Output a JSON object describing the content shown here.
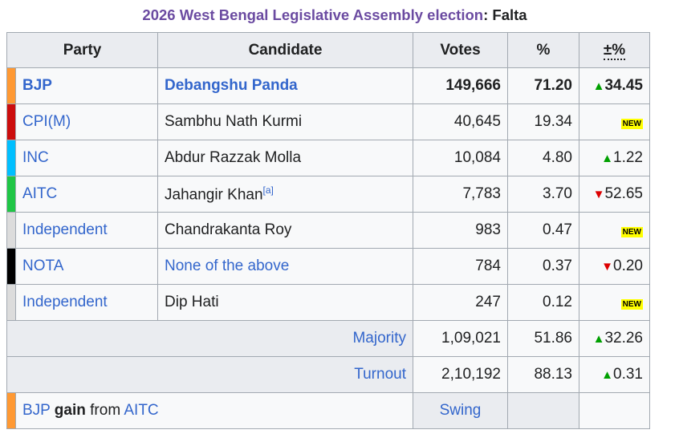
{
  "caption": {
    "link": "2026 West Bengal Legislative Assembly election",
    "sep": ": ",
    "constituency": "Falta"
  },
  "headers": {
    "party": "Party",
    "candidate": "Candidate",
    "votes": "Votes",
    "percent": "%",
    "change": "±%"
  },
  "rows": [
    {
      "party": "BJP",
      "candidate": "Debangshu Panda",
      "votes": "149,666",
      "percent": "71.20",
      "change": "34.45",
      "color": "#ff9933"
    },
    {
      "party": "CPI(M)",
      "candidate": "Sambhu Nath Kurmi",
      "votes": "40,645",
      "percent": "19.34",
      "change": "NEW",
      "color": "#cc0d0d"
    },
    {
      "party": "INC",
      "candidate": "Abdur Razzak Molla",
      "votes": "10,084",
      "percent": "4.80",
      "change": "1.22",
      "color": "#00bfff"
    },
    {
      "party": "AITC",
      "candidate": "Jahangir Khan",
      "footnote": "[a]",
      "votes": "7,783",
      "percent": "3.70",
      "change": "52.65",
      "color": "#20c646"
    },
    {
      "party": "Independent",
      "candidate": "Chandrakanta Roy",
      "votes": "983",
      "percent": "0.47",
      "change": "NEW",
      "color": "#dcdcdc"
    },
    {
      "party": "NOTA",
      "candidate": "None of the above",
      "votes": "784",
      "percent": "0.37",
      "change": "0.20",
      "color": "#000000"
    },
    {
      "party": "Independent",
      "candidate": "Dip Hati",
      "votes": "247",
      "percent": "0.12",
      "change": "NEW",
      "color": "#dcdcdc"
    }
  ],
  "majority": {
    "label": "Majority",
    "votes": "1,09,021",
    "percent": "51.86",
    "change": "32.26"
  },
  "turnout": {
    "label": "Turnout",
    "votes": "2,10,192",
    "percent": "88.13",
    "change": "0.31"
  },
  "result": {
    "winner": "BJP",
    "gain": "gain",
    "from": "from",
    "loser": "AITC",
    "swing": "Swing",
    "color": "#ff9933"
  }
}
